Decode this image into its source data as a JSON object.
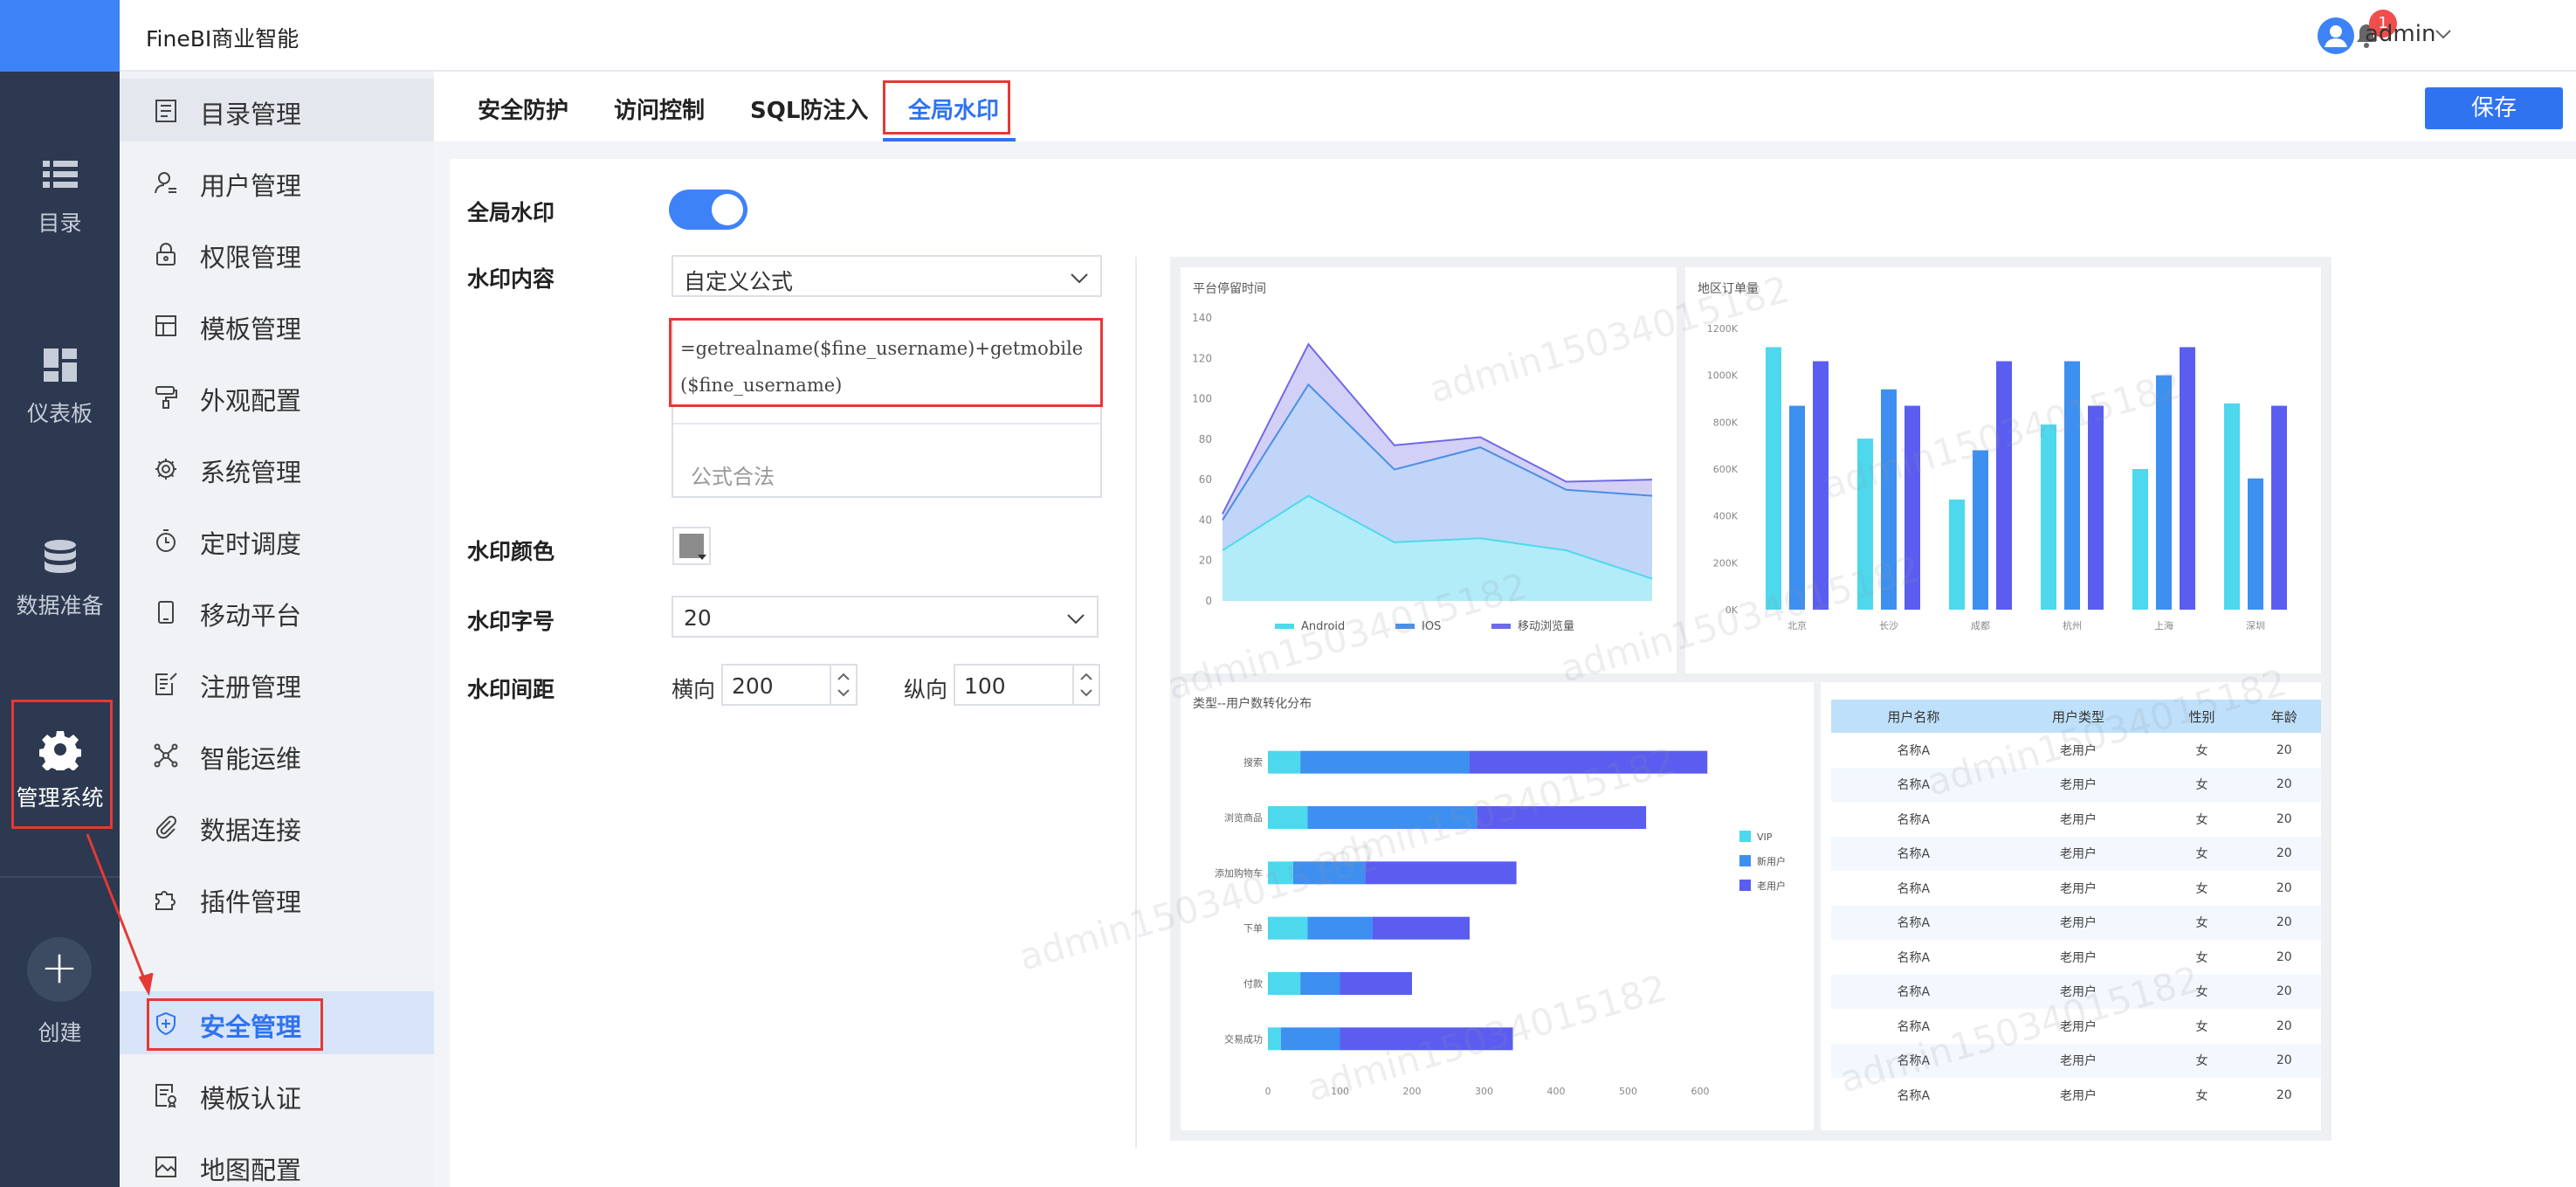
{
  "nav": {
    "items": [
      {
        "label": "目录",
        "icon": "list-icon"
      },
      {
        "label": "仪表板",
        "icon": "dashboard-icon"
      },
      {
        "label": "数据准备",
        "icon": "database-icon"
      },
      {
        "label": "管理系统",
        "icon": "gear-icon"
      }
    ],
    "create_label": "创建",
    "create_symbol": "+"
  },
  "topbar": {
    "brand": "FineBI商业智能",
    "notification_count": "1",
    "user_name": "admin"
  },
  "submenu": {
    "items": [
      {
        "label": "目录管理"
      },
      {
        "label": "用户管理"
      },
      {
        "label": "权限管理"
      },
      {
        "label": "模板管理"
      },
      {
        "label": "外观配置"
      },
      {
        "label": "系统管理"
      },
      {
        "label": "定时调度"
      },
      {
        "label": "移动平台"
      },
      {
        "label": "注册管理"
      },
      {
        "label": "智能运维"
      },
      {
        "label": "数据连接"
      },
      {
        "label": "插件管理"
      },
      {
        "label": "安全管理"
      },
      {
        "label": "模板认证"
      },
      {
        "label": "地图配置"
      }
    ]
  },
  "tabs": {
    "items": [
      {
        "label": "安全防护"
      },
      {
        "label": "访问控制"
      },
      {
        "label": "SQL防注入"
      },
      {
        "label": "全局水印"
      }
    ],
    "save_label": "保存"
  },
  "form": {
    "watermark_label": "全局水印",
    "content_label": "水印内容",
    "content_value": "自定义公式",
    "formula_text": "=getrealname($fine_username)+getmobile($fine_username)",
    "formula_status": "公式合法",
    "color_label": "水印颜色",
    "color_value": "#8c8c8c",
    "fontsize_label": "水印字号",
    "fontsize_value": "20",
    "spacing_label": "水印间距",
    "horizontal_label": "横向",
    "horizontal_value": "200",
    "vertical_label": "纵向",
    "vertical_value": "100"
  },
  "preview": {
    "watermark_text": "admin15034015182",
    "area_chart": {
      "title": "平台停留时间",
      "legend": [
        "Android",
        "IOS",
        "移动浏览量"
      ]
    },
    "bar_chart": {
      "title": "地区订单量",
      "cities": [
        "北京",
        "长沙",
        "成都",
        "杭州",
        "上海",
        "深圳"
      ]
    },
    "hbar_chart": {
      "title": "类型--用户数转化分布",
      "legend": [
        "VIP",
        "新用户",
        "老用户"
      ]
    },
    "table": {
      "headers": [
        "用户名称",
        "用户类型",
        "性别",
        "年龄"
      ],
      "rows": [
        [
          "名称A",
          "老用户",
          "女",
          "20"
        ],
        [
          "名称A",
          "老用户",
          "女",
          "20"
        ],
        [
          "名称A",
          "老用户",
          "女",
          "20"
        ],
        [
          "名称A",
          "老用户",
          "女",
          "20"
        ],
        [
          "名称A",
          "老用户",
          "女",
          "20"
        ],
        [
          "名称A",
          "老用户",
          "女",
          "20"
        ],
        [
          "名称A",
          "老用户",
          "女",
          "20"
        ],
        [
          "名称A",
          "老用户",
          "女",
          "20"
        ],
        [
          "名称A",
          "老用户",
          "女",
          "20"
        ],
        [
          "名称A",
          "老用户",
          "女",
          "20"
        ],
        [
          "名称A",
          "老用户",
          "女",
          "20"
        ]
      ]
    }
  },
  "chart_data": [
    {
      "type": "area",
      "title": "平台停留时间",
      "x": [
        1,
        2,
        3,
        4,
        5,
        6
      ],
      "ylim": [
        0,
        140
      ],
      "yticks": [
        0,
        20,
        40,
        60,
        80,
        100,
        120,
        140
      ],
      "series": [
        {
          "name": "Android",
          "values": [
            25,
            52,
            29,
            31,
            25,
            11
          ]
        },
        {
          "name": "IOS",
          "values": [
            40,
            107,
            65,
            76,
            55,
            52
          ]
        },
        {
          "name": "移动浏览量",
          "values": [
            43,
            127,
            77,
            81,
            59,
            60
          ]
        }
      ]
    },
    {
      "type": "bar",
      "title": "地区订单量",
      "categories": [
        "北京",
        "长沙",
        "成都",
        "杭州",
        "上海",
        "深圳"
      ],
      "ylim": [
        0,
        1200000
      ],
      "yticks": [
        "0K",
        "200K",
        "400K",
        "600K",
        "800K",
        "1000K",
        "1200K"
      ],
      "series": [
        {
          "values": [
            1120000,
            730000,
            470000,
            790000,
            600000,
            880000
          ]
        },
        {
          "values": [
            870000,
            940000,
            680000,
            1060000,
            1000000,
            560000
          ]
        },
        {
          "values": [
            1060000,
            870000,
            1060000,
            870000,
            1120000,
            870000
          ]
        }
      ]
    },
    {
      "type": "bar",
      "orientation": "horizontal",
      "title": "类型--用户数转化分布",
      "categories": [
        "搜索",
        "浏览商品",
        "添加购物车",
        "下单",
        "付款",
        "交易成功"
      ],
      "xlim": [
        0,
        600
      ],
      "xticks": [
        0,
        100,
        200,
        300,
        400,
        500,
        600
      ],
      "series": [
        {
          "name": "VIP",
          "values": [
            45,
            55,
            35,
            55,
            45,
            18
          ]
        },
        {
          "name": "新用户",
          "values": [
            235,
            235,
            100,
            90,
            55,
            82
          ]
        },
        {
          "name": "老用户",
          "values": [
            330,
            235,
            210,
            135,
            100,
            240
          ]
        }
      ]
    }
  ]
}
